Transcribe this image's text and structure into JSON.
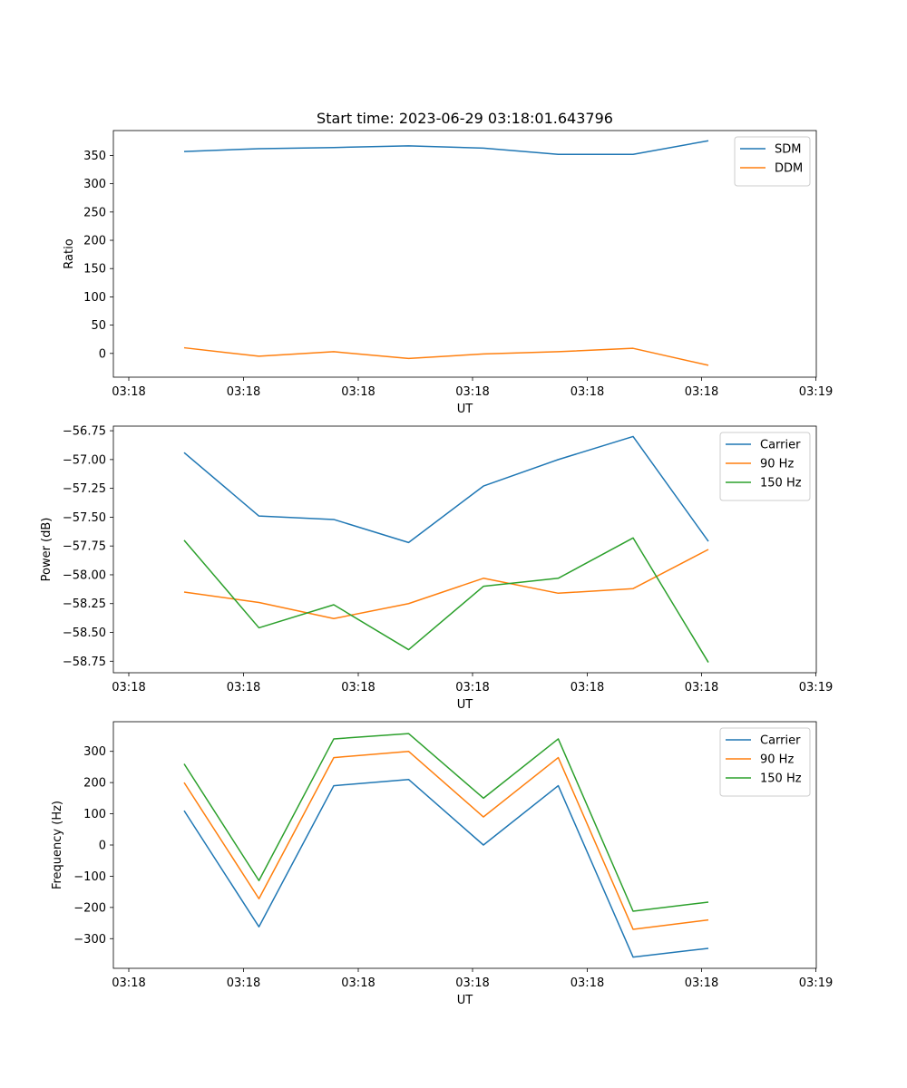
{
  "figure": {
    "title": "Start time: 2023-06-29 03:18:01.643796"
  },
  "chart_data": [
    {
      "type": "line",
      "xlabel": "UT",
      "ylabel": "Ratio",
      "x_tick_labels": [
        "03:18",
        "03:18",
        "03:18",
        "03:18",
        "03:18",
        "03:18",
        "03:19"
      ],
      "y_ticks": [
        0,
        50,
        100,
        150,
        200,
        250,
        300,
        350
      ],
      "y_tick_labels": [
        "0",
        "50",
        "100",
        "150",
        "200",
        "250",
        "300",
        "350"
      ],
      "ylim": [
        -42,
        394
      ],
      "grid": false,
      "legend_position": "top-right",
      "series": [
        {
          "name": "SDM",
          "color": "#1f77b4",
          "values": [
            357,
            362,
            364,
            367,
            363,
            352,
            352,
            376
          ]
        },
        {
          "name": "DDM",
          "color": "#ff7f0e",
          "values": [
            10,
            -5,
            3,
            -9,
            -1,
            3,
            9,
            -21
          ]
        }
      ]
    },
    {
      "type": "line",
      "xlabel": "UT",
      "ylabel": "Power (dB)",
      "x_tick_labels": [
        "03:18",
        "03:18",
        "03:18",
        "03:18",
        "03:18",
        "03:18",
        "03:19"
      ],
      "y_ticks": [
        -58.75,
        -58.5,
        -58.25,
        -58.0,
        -57.75,
        -57.5,
        -57.25,
        -57.0,
        -56.75
      ],
      "y_tick_labels": [
        "−58.75",
        "−58.50",
        "−58.25",
        "−58.00",
        "−57.75",
        "−57.50",
        "−57.25",
        "−57.00",
        "−56.75"
      ],
      "ylim": [
        -58.85,
        -56.71
      ],
      "grid": false,
      "legend_position": "top-right",
      "series": [
        {
          "name": "Carrier",
          "color": "#1f77b4",
          "values": [
            -56.94,
            -57.49,
            -57.52,
            -57.72,
            -57.23,
            -57.0,
            -56.8,
            -57.71
          ]
        },
        {
          "name": "90 Hz",
          "color": "#ff7f0e",
          "values": [
            -58.15,
            -58.24,
            -58.38,
            -58.25,
            -58.03,
            -58.16,
            -58.12,
            -57.78
          ]
        },
        {
          "name": "150 Hz",
          "color": "#2ca02c",
          "values": [
            -57.7,
            -58.46,
            -58.26,
            -58.65,
            -58.1,
            -58.03,
            -57.68,
            -58.76
          ]
        }
      ]
    },
    {
      "type": "line",
      "xlabel": "UT",
      "ylabel": "Frequency (Hz)",
      "x_tick_labels": [
        "03:18",
        "03:18",
        "03:18",
        "03:18",
        "03:18",
        "03:18",
        "03:19"
      ],
      "y_ticks": [
        -300,
        -200,
        -100,
        0,
        100,
        200,
        300
      ],
      "y_tick_labels": [
        "−300",
        "−200",
        "−100",
        "0",
        "100",
        "200",
        "300"
      ],
      "ylim": [
        -395,
        395
      ],
      "grid": false,
      "legend_position": "top-right",
      "series": [
        {
          "name": "Carrier",
          "color": "#1f77b4",
          "values": [
            110,
            -262,
            190,
            210,
            0,
            190,
            -359,
            -331
          ]
        },
        {
          "name": "90 Hz",
          "color": "#ff7f0e",
          "values": [
            200,
            -172,
            280,
            300,
            90,
            280,
            -270,
            -240
          ]
        },
        {
          "name": "150 Hz",
          "color": "#2ca02c",
          "values": [
            260,
            -114,
            340,
            357,
            150,
            340,
            -212,
            -183
          ]
        }
      ]
    }
  ]
}
